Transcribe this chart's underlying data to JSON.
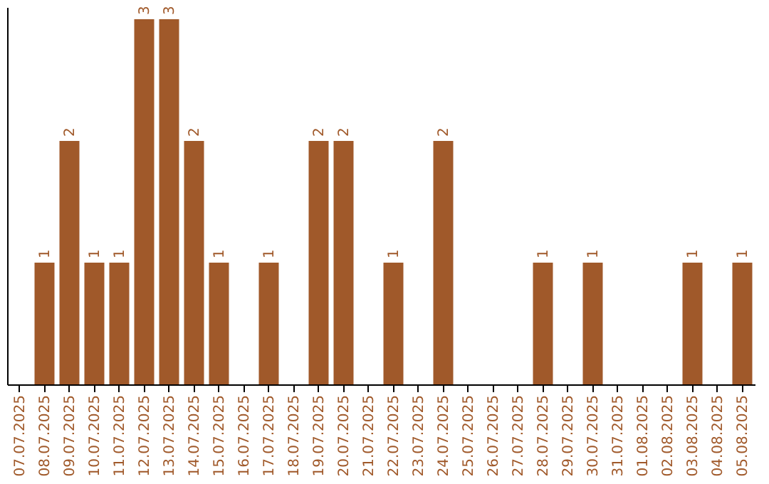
{
  "chart_data": {
    "type": "bar",
    "categories": [
      "07.07.2025",
      "08.07.2025",
      "09.07.2025",
      "10.07.2025",
      "11.07.2025",
      "12.07.2025",
      "13.07.2025",
      "14.07.2025",
      "15.07.2025",
      "16.07.2025",
      "17.07.2025",
      "18.07.2025",
      "19.07.2025",
      "20.07.2025",
      "21.07.2025",
      "22.07.2025",
      "23.07.2025",
      "24.07.2025",
      "25.07.2025",
      "26.07.2025",
      "27.07.2025",
      "28.07.2025",
      "29.07.2025",
      "30.07.2025",
      "31.07.2025",
      "01.08.2025",
      "02.08.2025",
      "03.08.2025",
      "04.08.2025",
      "05.08.2025"
    ],
    "values": [
      0,
      1,
      2,
      1,
      1,
      3,
      3,
      2,
      1,
      0,
      1,
      0,
      2,
      2,
      0,
      1,
      0,
      2,
      0,
      0,
      0,
      1,
      0,
      1,
      0,
      0,
      0,
      1,
      0,
      1
    ],
    "value_labels": [
      null,
      "1",
      "2",
      "1",
      "1",
      "3",
      "3",
      "2",
      "1",
      null,
      "1",
      null,
      "2",
      "2",
      null,
      "1",
      null,
      "2",
      null,
      null,
      null,
      "1",
      null,
      "1",
      null,
      null,
      null,
      "1",
      null,
      "1"
    ],
    "color": "#a0592a",
    "ylim": [
      0,
      3.1
    ],
    "tick_labels": "x",
    "grid": false
  }
}
